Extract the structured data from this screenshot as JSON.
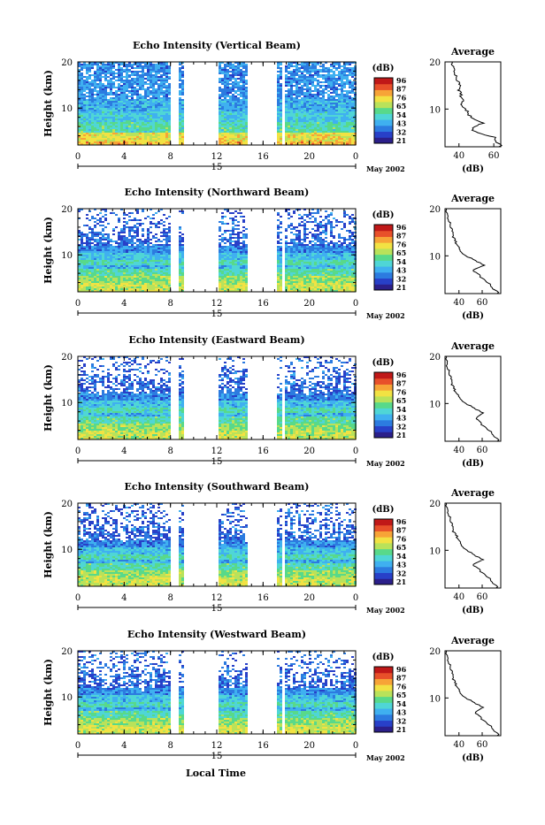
{
  "figure": {
    "xlabel": "Local Time",
    "colorbar_unit": "(dB)",
    "colors": [
      "#2b1f8a",
      "#2840c8",
      "#2c7be0",
      "#3fb0f0",
      "#4fd6d6",
      "#58d98a",
      "#b9e25a",
      "#f2e243",
      "#f7a437",
      "#e8502a",
      "#c01818"
    ]
  },
  "chart_data": [
    {
      "type": "heatmap",
      "title": "Echo Intensity (Vertical Beam)",
      "ylabel": "Height (km)",
      "x_ticks": [
        "0",
        "4",
        "8",
        "12",
        "16",
        "20",
        "0"
      ],
      "y_ticks": [
        "20",
        "10"
      ],
      "date_label": "15",
      "month_label": "May 2002",
      "xlim": [
        0,
        24
      ],
      "ylim": [
        2,
        20
      ],
      "colorbar": {
        "label": "(dB)",
        "ticks": [
          "96",
          "87",
          "76",
          "65",
          "54",
          "43",
          "32",
          "21"
        ],
        "range": [
          21,
          96
        ]
      },
      "data_gaps": [
        [
          8,
          8.5
        ],
        [
          9,
          12
        ],
        [
          14.5,
          17
        ],
        [
          17.5,
          17.8
        ]
      ],
      "profile": {
        "title": "Average",
        "xlabel": "(dB)",
        "x_ticks": [
          "40",
          "60"
        ],
        "xlim": [
          32,
          64
        ],
        "y_ticks": [
          "20",
          "10"
        ],
        "height": [
          2,
          3,
          4,
          5,
          6,
          7,
          8,
          9,
          10,
          11,
          12,
          13,
          14,
          15,
          16,
          17,
          18,
          19,
          20
        ],
        "intensity": [
          64,
          62,
          60,
          50,
          47,
          54,
          48,
          45,
          44,
          42,
          42,
          41,
          40,
          40,
          39,
          38,
          38,
          37,
          36
        ]
      }
    },
    {
      "type": "heatmap",
      "title": "Echo Intensity (Northward Beam)",
      "ylabel": "Height (km)",
      "x_ticks": [
        "0",
        "4",
        "8",
        "12",
        "16",
        "20",
        "0"
      ],
      "y_ticks": [
        "20",
        "10"
      ],
      "date_label": "15",
      "month_label": "May 2002",
      "xlim": [
        0,
        24
      ],
      "ylim": [
        2,
        20
      ],
      "colorbar": {
        "label": "(dB)",
        "ticks": [
          "96",
          "87",
          "76",
          "65",
          "54",
          "43",
          "32",
          "21"
        ],
        "range": [
          21,
          96
        ]
      },
      "data_gaps": [
        [
          8,
          8.5
        ],
        [
          9,
          12
        ],
        [
          14.5,
          17
        ],
        [
          17.5,
          17.8
        ]
      ],
      "profile": {
        "title": "Average",
        "xlabel": "(dB)",
        "x_ticks": [
          "40",
          "60"
        ],
        "xlim": [
          28,
          76
        ],
        "y_ticks": [
          "20",
          "10"
        ],
        "height": [
          2,
          3,
          4,
          5,
          6,
          7,
          8,
          9,
          10,
          11,
          12,
          13,
          14,
          15,
          16,
          17,
          18,
          19,
          20
        ],
        "intensity": [
          74,
          70,
          66,
          61,
          57,
          52,
          62,
          54,
          46,
          42,
          39,
          37,
          35,
          34,
          33,
          32,
          31,
          30,
          29
        ]
      }
    },
    {
      "type": "heatmap",
      "title": "Echo Intensity (Eastward Beam)",
      "ylabel": "Height (km)",
      "x_ticks": [
        "0",
        "4",
        "8",
        "12",
        "16",
        "20",
        "0"
      ],
      "y_ticks": [
        "20",
        "10"
      ],
      "date_label": "15",
      "month_label": "May 2002",
      "xlim": [
        0,
        24
      ],
      "ylim": [
        2,
        20
      ],
      "colorbar": {
        "label": "(dB)",
        "ticks": [
          "96",
          "87",
          "76",
          "65",
          "54",
          "43",
          "32",
          "21"
        ],
        "range": [
          21,
          96
        ]
      },
      "data_gaps": [
        [
          8,
          8.5
        ],
        [
          9,
          12
        ],
        [
          14.5,
          17
        ],
        [
          17.5,
          17.8
        ]
      ],
      "profile": {
        "title": "Average",
        "xlabel": "(dB)",
        "x_ticks": [
          "40",
          "60"
        ],
        "xlim": [
          28,
          76
        ],
        "y_ticks": [
          "20",
          "10"
        ],
        "height": [
          2,
          3,
          4,
          5,
          6,
          7,
          8,
          9,
          10,
          11,
          12,
          13,
          14,
          15,
          16,
          17,
          18,
          19,
          20
        ],
        "intensity": [
          74,
          71,
          67,
          62,
          58,
          55,
          61,
          53,
          46,
          42,
          38,
          36,
          34,
          33,
          32,
          31,
          30,
          30,
          29
        ]
      }
    },
    {
      "type": "heatmap",
      "title": "Echo Intensity (Southward Beam)",
      "ylabel": "Height (km)",
      "x_ticks": [
        "0",
        "4",
        "8",
        "12",
        "16",
        "20",
        "0"
      ],
      "y_ticks": [
        "20",
        "10"
      ],
      "date_label": "15",
      "month_label": "May 2002",
      "xlim": [
        0,
        24
      ],
      "ylim": [
        2,
        20
      ],
      "colorbar": {
        "label": "(dB)",
        "ticks": [
          "96",
          "87",
          "76",
          "65",
          "54",
          "43",
          "32",
          "21"
        ],
        "range": [
          21,
          96
        ]
      },
      "data_gaps": [
        [
          8,
          8.5
        ],
        [
          9,
          12
        ],
        [
          14.5,
          17
        ],
        [
          17.5,
          17.8
        ]
      ],
      "profile": {
        "title": "Average",
        "xlabel": "(dB)",
        "x_ticks": [
          "40",
          "60"
        ],
        "xlim": [
          28,
          76
        ],
        "y_ticks": [
          "20",
          "10"
        ],
        "height": [
          2,
          3,
          4,
          5,
          6,
          7,
          8,
          9,
          10,
          11,
          12,
          13,
          14,
          15,
          16,
          17,
          18,
          19,
          20
        ],
        "intensity": [
          73,
          70,
          66,
          61,
          57,
          52,
          61,
          53,
          47,
          43,
          40,
          38,
          35,
          34,
          33,
          32,
          31,
          30,
          29
        ]
      }
    },
    {
      "type": "heatmap",
      "title": "Echo Intensity (Westward Beam)",
      "ylabel": "Height (km)",
      "x_ticks": [
        "0",
        "4",
        "8",
        "12",
        "16",
        "20",
        "0"
      ],
      "y_ticks": [
        "20",
        "10"
      ],
      "date_label": "15",
      "month_label": "May 2002",
      "xlim": [
        0,
        24
      ],
      "ylim": [
        2,
        20
      ],
      "colorbar": {
        "label": "(dB)",
        "ticks": [
          "96",
          "87",
          "76",
          "65",
          "54",
          "43",
          "32",
          "21"
        ],
        "range": [
          21,
          96
        ]
      },
      "data_gaps": [
        [
          8,
          8.5
        ],
        [
          9,
          12
        ],
        [
          14.5,
          17
        ],
        [
          17.5,
          17.8
        ]
      ],
      "profile": {
        "title": "Average",
        "xlabel": "(dB)",
        "x_ticks": [
          "40",
          "60"
        ],
        "xlim": [
          28,
          76
        ],
        "y_ticks": [
          "20",
          "10"
        ],
        "height": [
          2,
          3,
          4,
          5,
          6,
          7,
          8,
          9,
          10,
          11,
          12,
          13,
          14,
          15,
          16,
          17,
          18,
          19,
          20
        ],
        "intensity": [
          74,
          71,
          67,
          62,
          58,
          54,
          61,
          53,
          46,
          42,
          39,
          37,
          35,
          34,
          33,
          32,
          31,
          30,
          29
        ]
      }
    }
  ]
}
